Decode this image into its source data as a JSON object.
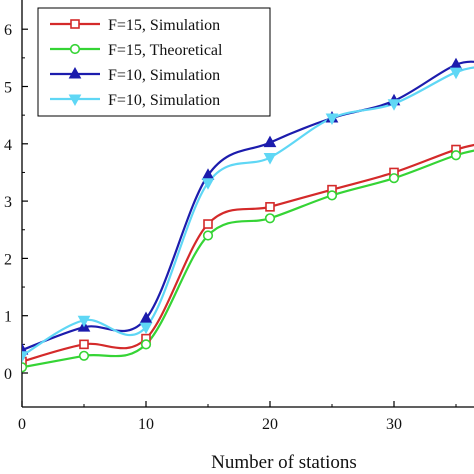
{
  "chart_data": {
    "type": "line",
    "title": "",
    "xlabel": "Number of stations",
    "ylabel": "",
    "xlim": [
      0,
      37
    ],
    "ylim": [
      -0.55,
      6.4
    ],
    "xticks": [
      0,
      10,
      20,
      30
    ],
    "yticks": [
      0,
      1,
      2,
      3,
      4,
      5,
      6
    ],
    "x_tick_labels": [
      "0",
      "10",
      "20",
      "30"
    ],
    "y_tick_labels": [
      "0",
      "1",
      "2",
      "3",
      "4",
      "5",
      "6"
    ],
    "legend_position": "top-left",
    "grid": false,
    "series": [
      {
        "name": "F=15, Simulation",
        "color": "#d42a2a",
        "marker": "square-open",
        "x": [
          0,
          5,
          10,
          15,
          20,
          25,
          30,
          35
        ],
        "y": [
          0.2,
          0.5,
          0.6,
          2.6,
          2.9,
          3.2,
          3.5,
          3.9
        ],
        "curve_end": 4.02
      },
      {
        "name": "F=15, Theoretical",
        "color": "#35d435",
        "marker": "circle-open",
        "x": [
          0,
          5,
          10,
          15,
          20,
          25,
          30,
          35
        ],
        "y": [
          0.1,
          0.3,
          0.5,
          2.4,
          2.7,
          3.1,
          3.4,
          3.8
        ],
        "curve_end": 3.92
      },
      {
        "name": "F=10, Simulation",
        "color": "#1c1cad",
        "marker": "triangle-up",
        "x": [
          0,
          5,
          10,
          15,
          20,
          25,
          30,
          35
        ],
        "y": [
          0.4,
          0.8,
          0.95,
          3.45,
          4.02,
          4.45,
          4.75,
          5.38
        ],
        "curve_end": 5.4
      },
      {
        "name": "F=10, Simulation",
        "color": "#5fd7f5",
        "marker": "triangle-down",
        "x": [
          0,
          5,
          10,
          15,
          20,
          25,
          30,
          35
        ],
        "y": [
          0.3,
          0.92,
          0.8,
          3.32,
          3.76,
          4.45,
          4.7,
          5.25
        ],
        "curve_end": 5.35
      }
    ]
  }
}
